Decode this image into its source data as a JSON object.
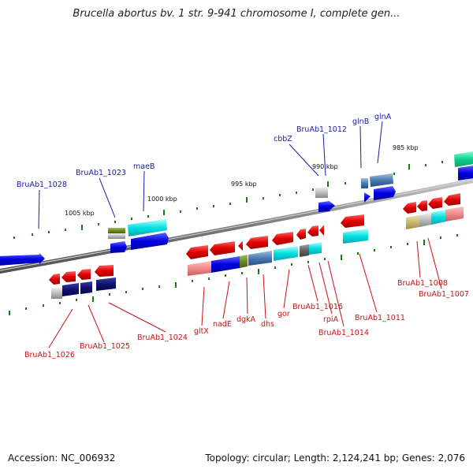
{
  "header": {
    "title": "Brucella abortus bv. 1 str. 9-941 chromosome I, complete gen..."
  },
  "footer": {
    "accession": "Accession: NC_006932",
    "topology": "Topology: circular; Length: 2,124,241 bp; Genes: 2,076"
  },
  "scale": {
    "ticks": [
      {
        "label": "1005 kbp"
      },
      {
        "label": "1000 kbp"
      },
      {
        "label": "995 kbp"
      },
      {
        "label": "990 kbp"
      },
      {
        "label": "985 kbp"
      }
    ]
  },
  "genes_top": [
    {
      "label": "BruAb1_1028"
    },
    {
      "label": "BruAb1_1023"
    },
    {
      "label": "maeB"
    },
    {
      "label": "cbbZ"
    },
    {
      "label": "BruAb1_1012"
    },
    {
      "label": "glnB"
    },
    {
      "label": "glnA"
    }
  ],
  "genes_bottom": [
    {
      "label": "BruAb1_1026"
    },
    {
      "label": "BruAb1_1025"
    },
    {
      "label": "BruAb1_1024"
    },
    {
      "label": "gltX"
    },
    {
      "label": "nadE"
    },
    {
      "label": "dgkA"
    },
    {
      "label": "dhs"
    },
    {
      "label": "gor"
    },
    {
      "label": "BruAb1_1016"
    },
    {
      "label": "rpiA"
    },
    {
      "label": "BruAb1_1014"
    },
    {
      "label": "BruAb1_1011"
    },
    {
      "label": "BruAb1_1008"
    },
    {
      "label": "BruAb1_1007"
    }
  ],
  "colors": {
    "forward_cds": "#1010e0",
    "reverse_cds": "#e01010",
    "backbone": "#888888",
    "tick": "#1a7a1a"
  }
}
